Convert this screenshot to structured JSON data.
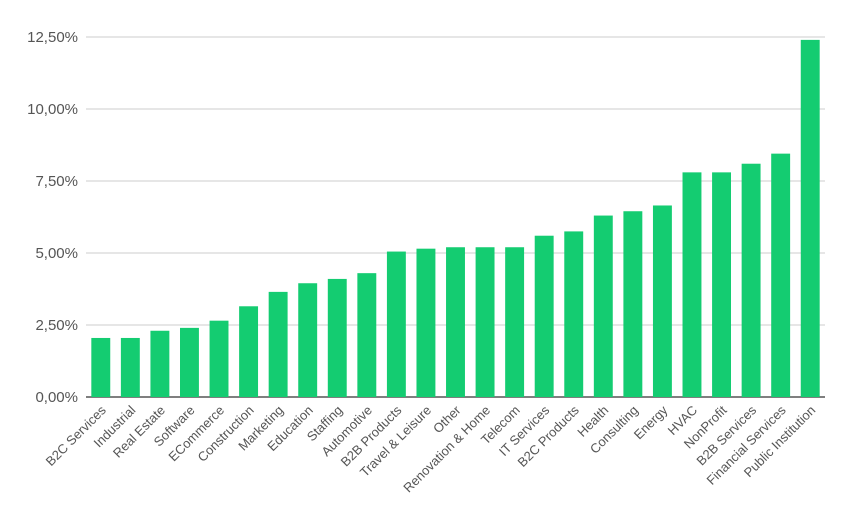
{
  "chart_data": {
    "type": "bar",
    "title": "",
    "xlabel": "",
    "ylabel": "",
    "categories": [
      "B2C Services",
      "Industrial",
      "Real Estate",
      "Software",
      "ECommerce",
      "Construction",
      "Marketing",
      "Education",
      "Staffing",
      "Automotive",
      "B2B Products",
      "Travel & Leisure",
      "Other",
      "Renovation & Home",
      "Telecom",
      "IT Services",
      "B2C Products",
      "Health",
      "Consulting",
      "Energy",
      "HVAC",
      "NonProfit",
      "B2B Services",
      "Financial Services",
      "Public Institution"
    ],
    "values": [
      2.05,
      2.05,
      2.3,
      2.4,
      2.65,
      3.15,
      3.65,
      3.95,
      4.1,
      4.3,
      5.05,
      5.15,
      5.2,
      5.2,
      5.2,
      5.6,
      5.75,
      6.3,
      6.45,
      6.65,
      7.8,
      7.8,
      8.1,
      8.45,
      12.4
    ],
    "ylim": [
      0,
      12.5
    ],
    "yticks": [
      "0,00%",
      "2,50%",
      "5,00%",
      "7,50%",
      "10,00%",
      "12,50%"
    ],
    "ytick_values": [
      0,
      2.5,
      5,
      7.5,
      10,
      12.5
    ],
    "bar_color": "#14cc71",
    "grid": true,
    "grid_color": "#cccccc"
  }
}
